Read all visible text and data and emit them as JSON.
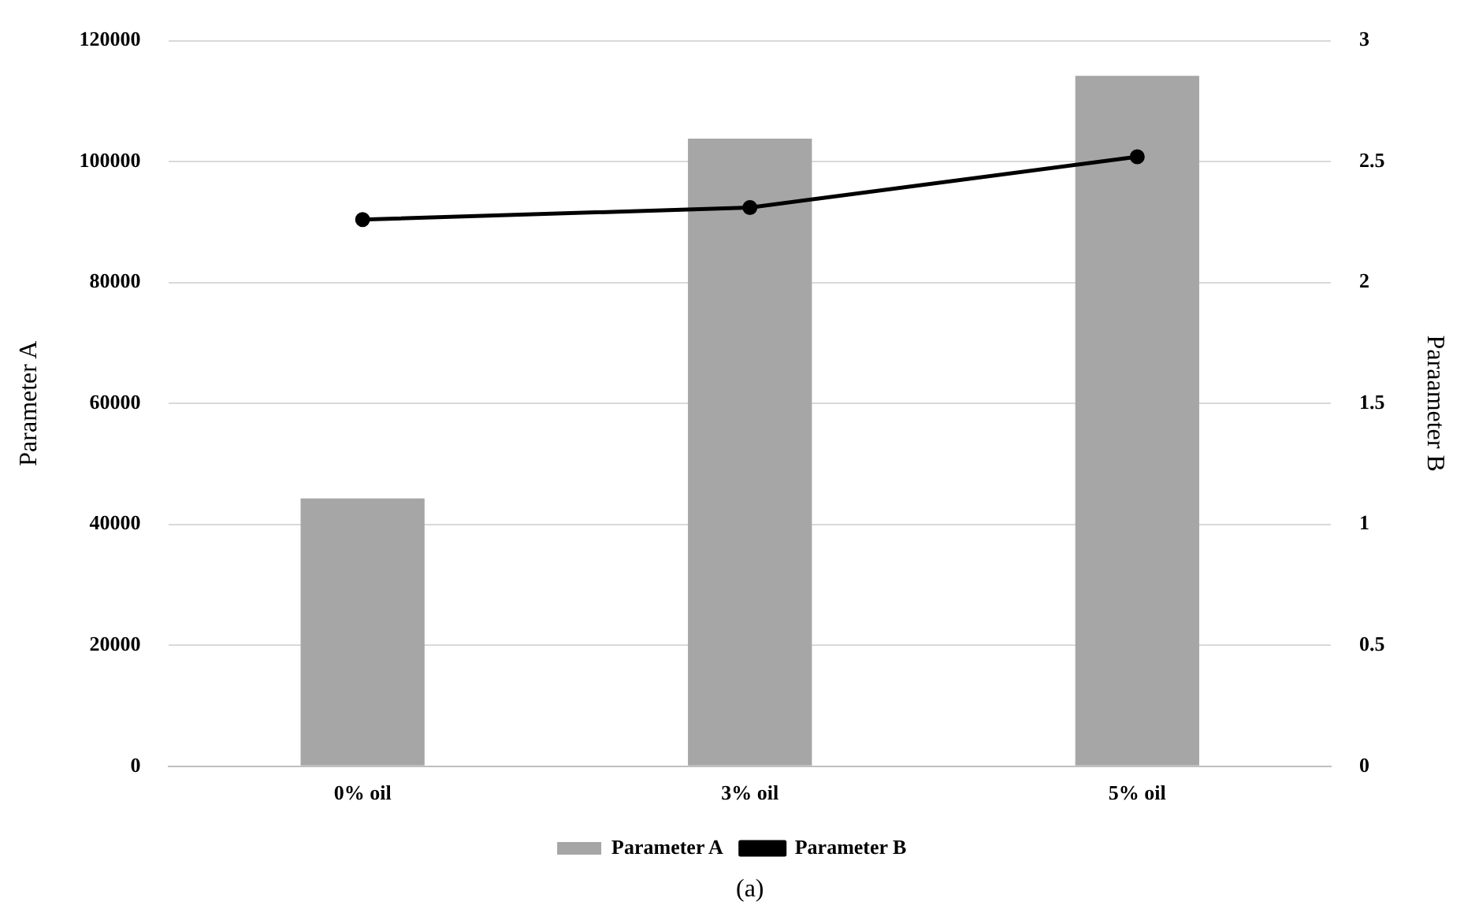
{
  "chart_data": {
    "type": "bar",
    "categories": [
      "0% oil",
      "3% oil",
      "5% oil"
    ],
    "series": [
      {
        "name": "Parameter A",
        "color": "#a6a6a6",
        "values": [
          44300,
          103800,
          114200
        ]
      },
      {
        "name": "Parameter B",
        "type": "line",
        "axis": "y2",
        "color": "#000000",
        "values": [
          2.26,
          2.31,
          2.52
        ]
      }
    ],
    "ylabel": "Parameter A",
    "y2label": "Paraameter B",
    "ylim": [
      0,
      120000
    ],
    "yticks": [
      0,
      20000,
      40000,
      60000,
      80000,
      100000,
      120000
    ],
    "y2lim": [
      0,
      3
    ],
    "y2ticks": [
      0,
      0.5,
      1,
      1.5,
      2,
      2.5,
      3
    ],
    "grid": "y",
    "legend": "bottom",
    "marker": "circle",
    "line_style": "solid",
    "annotations": [
      "(a)"
    ]
  }
}
